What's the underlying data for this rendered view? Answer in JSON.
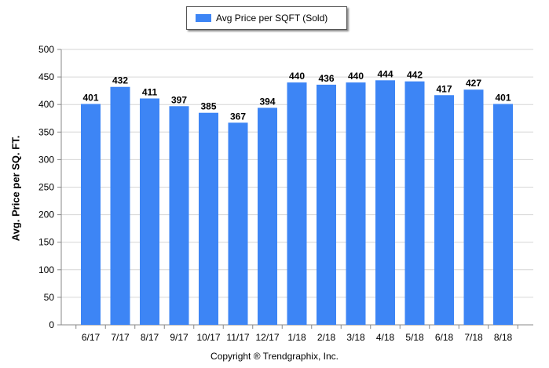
{
  "legend": {
    "label": "Avg Price per SQFT (Sold)"
  },
  "footer": {
    "copyright": "Copyright ® Trendgraphix, Inc."
  },
  "colors": {
    "bar": "#3d85f5",
    "grid": "#d6d6d6",
    "axis": "#888888"
  },
  "chart_data": {
    "type": "bar",
    "categories": [
      "6/17",
      "7/17",
      "8/17",
      "9/17",
      "10/17",
      "11/17",
      "12/17",
      "1/18",
      "2/18",
      "3/18",
      "4/18",
      "5/18",
      "6/18",
      "7/18",
      "8/18"
    ],
    "series": [
      {
        "name": "Avg Price per SQFT (Sold)",
        "values": [
          401,
          432,
          411,
          397,
          385,
          367,
          394,
          440,
          436,
          440,
          444,
          442,
          417,
          427,
          401
        ]
      }
    ],
    "ylabel": "Avg. Price per SQ. FT.",
    "ylim": [
      0,
      500
    ],
    "yticks": [
      0,
      50,
      100,
      150,
      200,
      250,
      300,
      350,
      400,
      450,
      500
    ],
    "grid": true,
    "legend_position": "top-center",
    "data_labels": true
  }
}
